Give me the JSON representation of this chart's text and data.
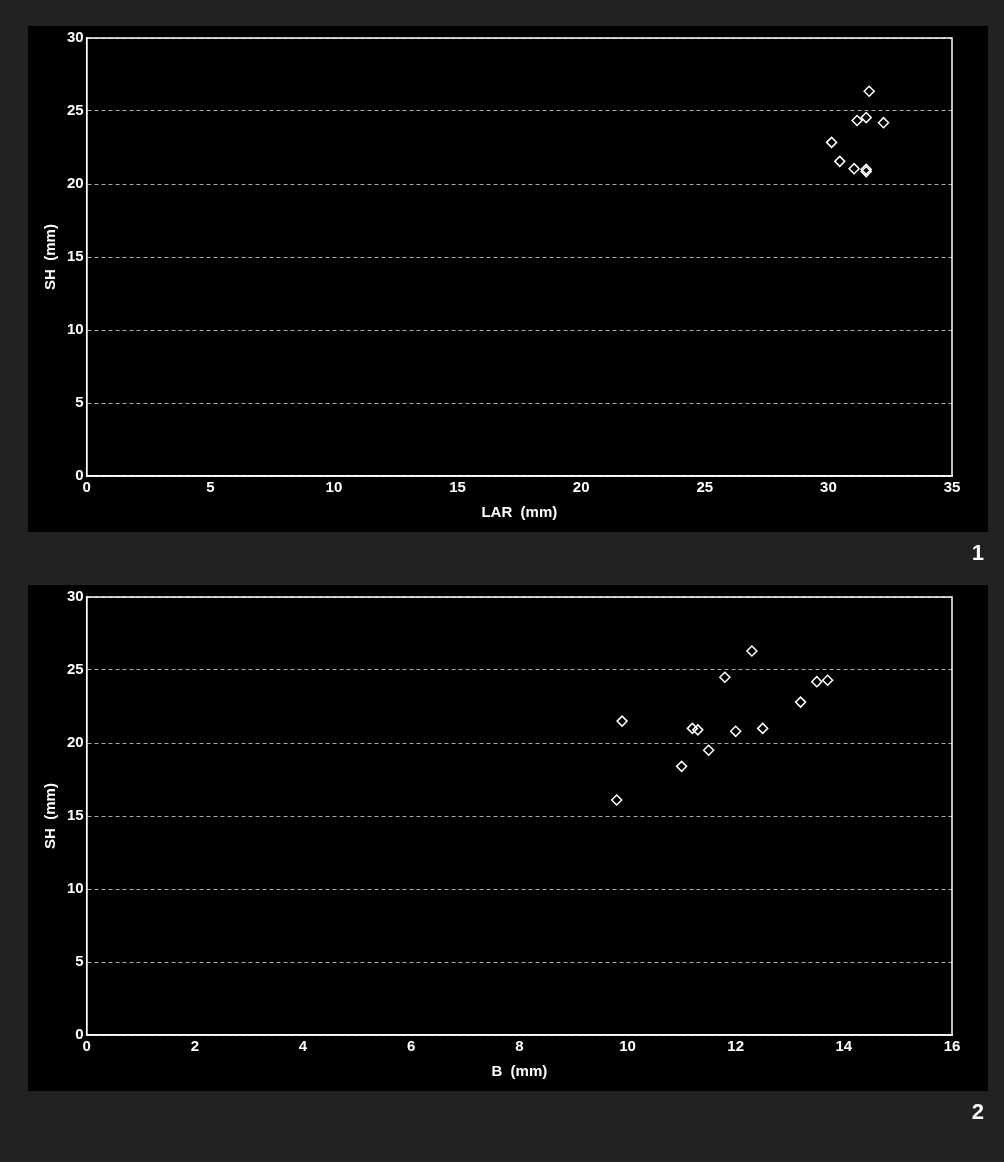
{
  "chart_data": [
    {
      "type": "scatter",
      "xlabel": "LAR  (mm)",
      "ylabel": "SH  (mm)",
      "xlim": [
        0,
        35
      ],
      "xticks": [
        0,
        5,
        10,
        15,
        20,
        25,
        30,
        35
      ],
      "ylim": [
        0,
        30
      ],
      "yticks": [
        0,
        5,
        10,
        15,
        20,
        25,
        30
      ],
      "grid": "y",
      "marker": "diamond",
      "annotations": [
        "1"
      ],
      "series": [
        {
          "color": "#ffffff",
          "x": [
            31.65,
            31.16,
            31.53,
            32.23,
            30.13,
            30.46,
            31.04,
            31.53,
            31.53
          ],
          "values": [
            26.35,
            24.35,
            24.55,
            24.2,
            22.85,
            21.55,
            21.05,
            21.0,
            20.85
          ]
        }
      ]
    },
    {
      "type": "scatter",
      "xlabel": "B  (mm)",
      "ylabel": "SH  (mm)",
      "xlim": [
        0,
        16
      ],
      "xticks": [
        0,
        2,
        4,
        6,
        8,
        10,
        12,
        14,
        16
      ],
      "ylim": [
        0,
        30
      ],
      "yticks": [
        0,
        5,
        10,
        15,
        20,
        25,
        30
      ],
      "grid": "y",
      "marker": "diamond",
      "annotations": [
        "2"
      ],
      "series": [
        {
          "color": "#ffffff",
          "x": [
            12.3,
            11.8,
            13.5,
            13.7,
            13.2,
            9.9,
            11.2,
            11.3,
            12.0,
            12.5,
            11.5,
            11.0,
            9.8
          ],
          "values": [
            26.3,
            24.5,
            24.2,
            24.3,
            22.8,
            21.5,
            21.0,
            20.9,
            20.8,
            21.0,
            19.5,
            18.4,
            16.1
          ]
        }
      ]
    }
  ]
}
